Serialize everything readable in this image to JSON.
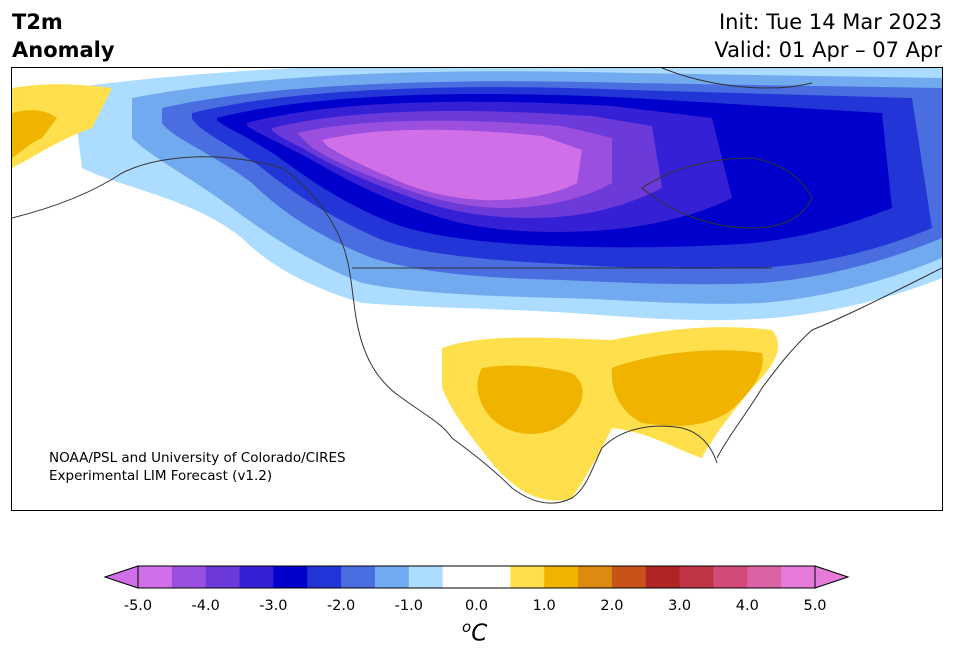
{
  "title": {
    "variable": "T2m",
    "subtitle": "Anomaly"
  },
  "init": "Init: Tue 14 Mar 2023",
  "valid": "Valid: 01 Apr – 07 Apr",
  "credit": {
    "line1": "NOAA/PSL and University of Colorado/CIRES",
    "line2": "Experimental LIM Forecast (v1.2)"
  },
  "colorbar": {
    "ticks": [
      "-5.0",
      "-4.0",
      "-3.0",
      "-2.0",
      "-1.0",
      "0.0",
      "1.0",
      "2.0",
      "3.0",
      "4.0",
      "5.0"
    ],
    "unit_sup": "o",
    "unit": "C",
    "colors": [
      "#d16fe8",
      "#9b4fdf",
      "#6b3ad9",
      "#3520d6",
      "#0000cc",
      "#2236d8",
      "#4a6ee0",
      "#72aaef",
      "#acdcff",
      "#ffffff",
      "#ffffff",
      "#ffe04c",
      "#f0b400",
      "#de8a10",
      "#c8531a",
      "#b02424",
      "#c23548",
      "#d14a78",
      "#dc62a6",
      "#e67ad8"
    ]
  },
  "map": {
    "region": "North America",
    "anomaly_colors": {
      "cold_min": "#d16fe8",
      "cold_strong": "#0000cc",
      "neutral": "#ffffff",
      "warm": "#f0b400"
    }
  }
}
